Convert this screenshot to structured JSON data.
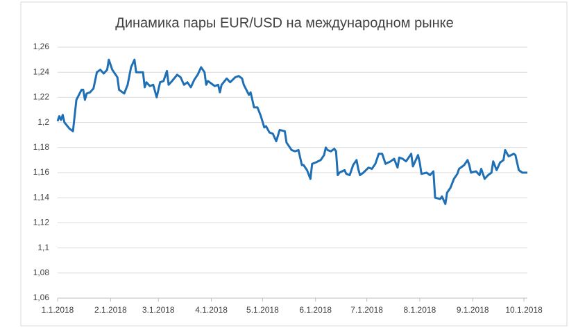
{
  "chart_data": {
    "type": "line",
    "title": "Динамика пары EUR/USD на международном рынке",
    "x": [
      "2018-01-01",
      "2018-01-02",
      "2018-01-03",
      "2018-01-04",
      "2018-01-05",
      "2018-01-08",
      "2018-01-10",
      "2018-01-12",
      "2018-01-15",
      "2018-01-16",
      "2018-01-17",
      "2018-01-18",
      "2018-01-20",
      "2018-01-22",
      "2018-01-24",
      "2018-01-26",
      "2018-01-28",
      "2018-01-30",
      "2018-01-31",
      "2018-02-02",
      "2018-02-05",
      "2018-02-06",
      "2018-02-09",
      "2018-02-11",
      "2018-02-13",
      "2018-02-15",
      "2018-02-16",
      "2018-02-20",
      "2018-02-21",
      "2018-02-22",
      "2018-02-24",
      "2018-02-26",
      "2018-02-28",
      "2018-03-02",
      "2018-03-04",
      "2018-03-06",
      "2018-03-07",
      "2018-03-09",
      "2018-03-12",
      "2018-03-14",
      "2018-03-16",
      "2018-03-18",
      "2018-03-20",
      "2018-03-22",
      "2018-03-24",
      "2018-03-26",
      "2018-03-28",
      "2018-03-29",
      "2018-03-30",
      "2018-04-01",
      "2018-04-03",
      "2018-04-05",
      "2018-04-06",
      "2018-04-07",
      "2018-04-10",
      "2018-04-12",
      "2018-04-15",
      "2018-04-17",
      "2018-04-19",
      "2018-04-20",
      "2018-04-23",
      "2018-04-24",
      "2018-04-26",
      "2018-04-28",
      "2018-04-30",
      "2018-05-02",
      "2018-05-03",
      "2018-05-05",
      "2018-05-07",
      "2018-05-09",
      "2018-05-11",
      "2018-05-14",
      "2018-05-15",
      "2018-05-18",
      "2018-05-20",
      "2018-05-22",
      "2018-05-24",
      "2018-05-25",
      "2018-05-27",
      "2018-05-29",
      "2018-05-30",
      "2018-06-01",
      "2018-06-04",
      "2018-06-06",
      "2018-06-07",
      "2018-06-08",
      "2018-06-10",
      "2018-06-12",
      "2018-06-13",
      "2018-06-14",
      "2018-06-15",
      "2018-06-18",
      "2018-06-19",
      "2018-06-21",
      "2018-06-23",
      "2018-06-25",
      "2018-06-26",
      "2018-06-27",
      "2018-06-29",
      "2018-07-02",
      "2018-07-04",
      "2018-07-06",
      "2018-07-08",
      "2018-07-10",
      "2018-07-12",
      "2018-07-15",
      "2018-07-17",
      "2018-07-19",
      "2018-07-20",
      "2018-07-22",
      "2018-07-24",
      "2018-07-27",
      "2018-07-28",
      "2018-07-31",
      "2018-08-01",
      "2018-08-02",
      "2018-08-05",
      "2018-08-07",
      "2018-08-09",
      "2018-08-10",
      "2018-08-13",
      "2018-08-14",
      "2018-08-16",
      "2018-08-17",
      "2018-08-19",
      "2018-08-21",
      "2018-08-23",
      "2018-08-24",
      "2018-08-27",
      "2018-08-29",
      "2018-08-30",
      "2018-08-31",
      "2018-09-03",
      "2018-09-05",
      "2018-09-06",
      "2018-09-08",
      "2018-09-10",
      "2018-09-12",
      "2018-09-13",
      "2018-09-15",
      "2018-09-17",
      "2018-09-19",
      "2018-09-20",
      "2018-09-22",
      "2018-09-25",
      "2018-09-26",
      "2018-09-28",
      "2018-09-30",
      "2018-10-03"
    ],
    "series": [
      {
        "color": "#1f6fb5",
        "values": [
          1.201,
          1.205,
          1.202,
          1.206,
          1.2,
          1.195,
          1.193,
          1.218,
          1.226,
          1.226,
          1.218,
          1.223,
          1.224,
          1.227,
          1.24,
          1.242,
          1.239,
          1.242,
          1.25,
          1.242,
          1.236,
          1.226,
          1.223,
          1.23,
          1.244,
          1.25,
          1.24,
          1.24,
          1.228,
          1.232,
          1.229,
          1.23,
          1.22,
          1.232,
          1.233,
          1.241,
          1.23,
          1.233,
          1.238,
          1.236,
          1.23,
          1.232,
          1.228,
          1.234,
          1.238,
          1.244,
          1.24,
          1.23,
          1.233,
          1.231,
          1.229,
          1.23,
          1.224,
          1.23,
          1.235,
          1.232,
          1.236,
          1.237,
          1.235,
          1.23,
          1.222,
          1.224,
          1.212,
          1.212,
          1.205,
          1.196,
          1.197,
          1.192,
          1.191,
          1.185,
          1.194,
          1.193,
          1.184,
          1.178,
          1.177,
          1.178,
          1.166,
          1.166,
          1.162,
          1.155,
          1.167,
          1.168,
          1.17,
          1.174,
          1.18,
          1.178,
          1.177,
          1.179,
          1.177,
          1.158,
          1.16,
          1.162,
          1.159,
          1.158,
          1.166,
          1.17,
          1.163,
          1.158,
          1.16,
          1.164,
          1.163,
          1.167,
          1.175,
          1.175,
          1.167,
          1.169,
          1.171,
          1.164,
          1.172,
          1.171,
          1.169,
          1.175,
          1.165,
          1.174,
          1.168,
          1.159,
          1.16,
          1.158,
          1.161,
          1.14,
          1.139,
          1.141,
          1.135,
          1.144,
          1.148,
          1.155,
          1.159,
          1.163,
          1.166,
          1.17,
          1.166,
          1.16,
          1.161,
          1.158,
          1.163,
          1.155,
          1.158,
          1.16,
          1.169,
          1.162,
          1.168,
          1.17,
          1.178,
          1.173,
          1.175,
          1.174,
          1.162,
          1.16,
          1.16
        ]
      }
    ],
    "xlim": [
      "2018-01-01",
      "2018-10-03"
    ],
    "xticks": [
      {
        "value": "2018-01-01",
        "label": "1.1.2018"
      },
      {
        "value": "2018-02-01",
        "label": "2.1.2018"
      },
      {
        "value": "2018-03-01",
        "label": "3.1.2018"
      },
      {
        "value": "2018-04-01",
        "label": "4.1.2018"
      },
      {
        "value": "2018-05-01",
        "label": "5.1.2018"
      },
      {
        "value": "2018-06-01",
        "label": "6.1.2018"
      },
      {
        "value": "2018-07-01",
        "label": "7.1.2018"
      },
      {
        "value": "2018-08-01",
        "label": "8.1.2018"
      },
      {
        "value": "2018-09-01",
        "label": "9.1.2018"
      },
      {
        "value": "2018-10-01",
        "label": "10.1.2018"
      }
    ],
    "ylim": [
      1.06,
      1.26
    ],
    "yticks": [
      {
        "value": 1.06,
        "label": "1,06"
      },
      {
        "value": 1.08,
        "label": "1,08"
      },
      {
        "value": 1.1,
        "label": "1,1"
      },
      {
        "value": 1.12,
        "label": "1,12"
      },
      {
        "value": 1.14,
        "label": "1,14"
      },
      {
        "value": 1.16,
        "label": "1,16"
      },
      {
        "value": 1.18,
        "label": "1,18"
      },
      {
        "value": 1.2,
        "label": "1,2"
      },
      {
        "value": 1.22,
        "label": "1,22"
      },
      {
        "value": 1.24,
        "label": "1,24"
      },
      {
        "value": 1.26,
        "label": "1,26"
      }
    ],
    "grid": true
  }
}
